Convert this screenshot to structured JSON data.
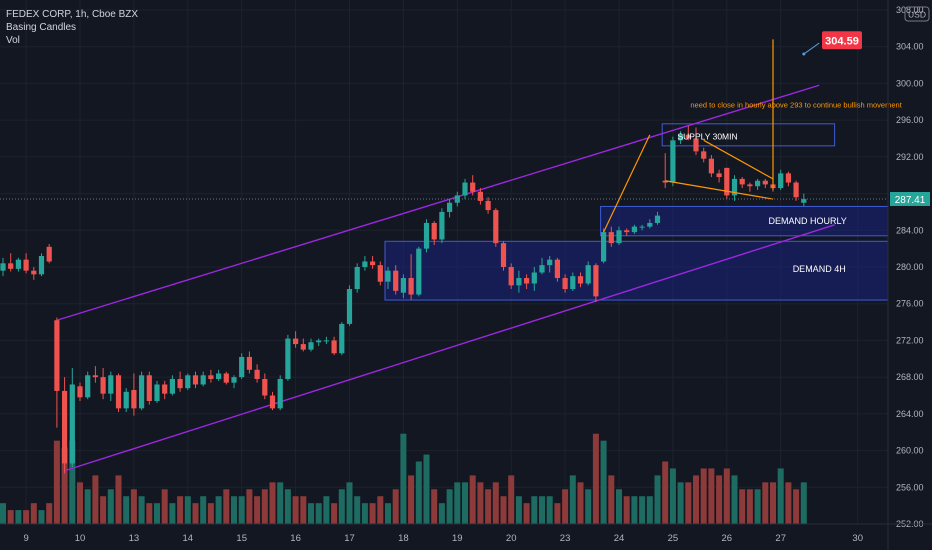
{
  "header": {
    "symbol_line": "FEDEX CORP, 1h, Cboe BZX",
    "indicator_1": "Basing Candles",
    "indicator_2": "Vol"
  },
  "currency": "USD",
  "last_price_label": "287.41",
  "target_label": "304.59",
  "colors": {
    "background": "#131722",
    "up": "#26a69a",
    "down": "#ef5350",
    "channel": "#9c27e0",
    "zone_border": "#3f5bd6",
    "zone_fill": "#1a237e",
    "annotation": "#ff9800",
    "target": "#f23645",
    "axis_text": "#b2b5be"
  },
  "annotations": {
    "supply": "SUPPLY 30MIN",
    "demand_hourly": "DEMAND HOURLY",
    "demand_4h": "DEMAND 4H",
    "note": "need to close in hourly above 293 to continue bullish movement"
  },
  "chart_data": {
    "type": "candlestick",
    "title": "FEDEX CORP, 1h, Cboe BZX",
    "ylim": [
      252,
      308
    ],
    "yticks": [
      252,
      256,
      260,
      264,
      268,
      272,
      276,
      280,
      284,
      288,
      292,
      296,
      300,
      304,
      308
    ],
    "xticks": [
      {
        "label": "9",
        "index": 3
      },
      {
        "label": "10",
        "index": 10
      },
      {
        "label": "13",
        "index": 17
      },
      {
        "label": "14",
        "index": 24
      },
      {
        "label": "15",
        "index": 31
      },
      {
        "label": "16",
        "index": 38
      },
      {
        "label": "17",
        "index": 45
      },
      {
        "label": "18",
        "index": 52
      },
      {
        "label": "19",
        "index": 59
      },
      {
        "label": "20",
        "index": 66
      },
      {
        "label": "23",
        "index": 73
      },
      {
        "label": "24",
        "index": 80
      },
      {
        "label": "25",
        "index": 87
      },
      {
        "label": "26",
        "index": 94
      },
      {
        "label": "27",
        "index": 101
      },
      {
        "label": "30",
        "index": 111
      }
    ],
    "last_price": 287.41,
    "target_price": 304.59,
    "candles": [
      {
        "o": 279.6,
        "h": 281,
        "l": 279,
        "c": 280.4,
        "v": 3
      },
      {
        "o": 280.4,
        "h": 281.5,
        "l": 279.5,
        "c": 279.8,
        "v": 2
      },
      {
        "o": 279.8,
        "h": 281,
        "l": 279.5,
        "c": 280.8,
        "v": 2
      },
      {
        "o": 280.8,
        "h": 281.5,
        "l": 279.3,
        "c": 279.6,
        "v": 2
      },
      {
        "o": 279.6,
        "h": 280,
        "l": 278.6,
        "c": 279.2,
        "v": 3
      },
      {
        "o": 279.2,
        "h": 281.5,
        "l": 279,
        "c": 281.2,
        "v": 2
      },
      {
        "o": 282.2,
        "h": 282.5,
        "l": 280.4,
        "c": 280.6,
        "v": 3
      },
      {
        "o": 274.2,
        "h": 274.5,
        "l": 262.5,
        "c": 266.5,
        "v": 12
      },
      {
        "o": 266.5,
        "h": 268,
        "l": 257.5,
        "c": 258.6,
        "v": 11
      },
      {
        "o": 258.6,
        "h": 269,
        "l": 258.2,
        "c": 267.2,
        "v": 12
      },
      {
        "o": 267,
        "h": 267.4,
        "l": 265.4,
        "c": 265.8,
        "v": 6
      },
      {
        "o": 265.8,
        "h": 268.6,
        "l": 265.6,
        "c": 268.2,
        "v": 5
      },
      {
        "o": 268.2,
        "h": 269.2,
        "l": 267.4,
        "c": 268,
        "v": 7
      },
      {
        "o": 268,
        "h": 269,
        "l": 265.6,
        "c": 266.2,
        "v": 4
      },
      {
        "o": 266.2,
        "h": 268.6,
        "l": 265.4,
        "c": 268.2,
        "v": 5
      },
      {
        "o": 268.2,
        "h": 268.4,
        "l": 264.2,
        "c": 264.6,
        "v": 7
      },
      {
        "o": 264.6,
        "h": 266.8,
        "l": 264.2,
        "c": 266.4,
        "v": 4
      },
      {
        "o": 266.6,
        "h": 268.4,
        "l": 263.8,
        "c": 264.6,
        "v": 5
      },
      {
        "o": 264.6,
        "h": 268.6,
        "l": 264.4,
        "c": 268.2,
        "v": 4
      },
      {
        "o": 268.2,
        "h": 268.6,
        "l": 265,
        "c": 265.4,
        "v": 3
      },
      {
        "o": 265.4,
        "h": 267.6,
        "l": 265.2,
        "c": 267.2,
        "v": 3
      },
      {
        "o": 267.2,
        "h": 267.6,
        "l": 265.6,
        "c": 266.2,
        "v": 5
      },
      {
        "o": 266.2,
        "h": 268.2,
        "l": 266,
        "c": 267.8,
        "v": 3
      },
      {
        "o": 267.8,
        "h": 268.6,
        "l": 266.4,
        "c": 266.8,
        "v": 4
      },
      {
        "o": 266.8,
        "h": 268.4,
        "l": 266.6,
        "c": 268.2,
        "v": 4
      },
      {
        "o": 268.2,
        "h": 268.6,
        "l": 266.8,
        "c": 267.2,
        "v": 3
      },
      {
        "o": 267.2,
        "h": 268.6,
        "l": 267,
        "c": 268.2,
        "v": 4
      },
      {
        "o": 268.2,
        "h": 268.8,
        "l": 267.4,
        "c": 267.8,
        "v": 3
      },
      {
        "o": 267.8,
        "h": 268.8,
        "l": 267.6,
        "c": 268.4,
        "v": 4
      },
      {
        "o": 268.4,
        "h": 268.6,
        "l": 267.2,
        "c": 267.4,
        "v": 5
      },
      {
        "o": 267.4,
        "h": 268.2,
        "l": 266.8,
        "c": 268,
        "v": 4
      },
      {
        "o": 268,
        "h": 270.6,
        "l": 267.8,
        "c": 270.2,
        "v": 4
      },
      {
        "o": 270.2,
        "h": 270.8,
        "l": 268.4,
        "c": 268.8,
        "v": 5
      },
      {
        "o": 268.8,
        "h": 269.4,
        "l": 267.4,
        "c": 267.8,
        "v": 4
      },
      {
        "o": 267.8,
        "h": 268.4,
        "l": 265.6,
        "c": 266,
        "v": 5
      },
      {
        "o": 266,
        "h": 266.4,
        "l": 264.4,
        "c": 264.6,
        "v": 6
      },
      {
        "o": 264.6,
        "h": 268.2,
        "l": 264.4,
        "c": 267.8,
        "v": 6
      },
      {
        "o": 267.8,
        "h": 272.6,
        "l": 267.6,
        "c": 272.2,
        "v": 5
      },
      {
        "o": 272.2,
        "h": 273,
        "l": 271.2,
        "c": 271.6,
        "v": 4
      },
      {
        "o": 271.6,
        "h": 272.2,
        "l": 270.8,
        "c": 271,
        "v": 4
      },
      {
        "o": 271,
        "h": 272.2,
        "l": 270.8,
        "c": 271.8,
        "v": 3
      },
      {
        "o": 271.8,
        "h": 272.2,
        "l": 271.4,
        "c": 272,
        "v": 3
      },
      {
        "o": 272,
        "h": 272.4,
        "l": 271.6,
        "c": 272,
        "v": 4
      },
      {
        "o": 272,
        "h": 272.4,
        "l": 270.4,
        "c": 270.6,
        "v": 3
      },
      {
        "o": 270.6,
        "h": 274,
        "l": 270.4,
        "c": 273.8,
        "v": 5
      },
      {
        "o": 273.8,
        "h": 278,
        "l": 273.6,
        "c": 277.6,
        "v": 6
      },
      {
        "o": 277.6,
        "h": 280.4,
        "l": 277.2,
        "c": 280,
        "v": 4
      },
      {
        "o": 280,
        "h": 281.2,
        "l": 279.6,
        "c": 280.6,
        "v": 3
      },
      {
        "o": 280.6,
        "h": 281.2,
        "l": 279.8,
        "c": 280.2,
        "v": 3
      },
      {
        "o": 280.2,
        "h": 280.6,
        "l": 278,
        "c": 278.4,
        "v": 4
      },
      {
        "o": 278.4,
        "h": 280,
        "l": 277.6,
        "c": 279.6,
        "v": 3
      },
      {
        "o": 279.6,
        "h": 280.2,
        "l": 277,
        "c": 277.4,
        "v": 5
      },
      {
        "o": 277.2,
        "h": 279.2,
        "l": 276.6,
        "c": 278.8,
        "v": 13
      },
      {
        "o": 278.8,
        "h": 281.4,
        "l": 276.4,
        "c": 277,
        "v": 7
      },
      {
        "o": 277,
        "h": 282.2,
        "l": 276.8,
        "c": 282,
        "v": 9
      },
      {
        "o": 282,
        "h": 285.2,
        "l": 281.6,
        "c": 284.8,
        "v": 10
      },
      {
        "o": 284.8,
        "h": 285,
        "l": 282.4,
        "c": 283,
        "v": 5
      },
      {
        "o": 283,
        "h": 286.4,
        "l": 282.6,
        "c": 286,
        "v": 3
      },
      {
        "o": 286,
        "h": 287.4,
        "l": 285.4,
        "c": 287,
        "v": 5
      },
      {
        "o": 287,
        "h": 288.2,
        "l": 286.6,
        "c": 287.8,
        "v": 6
      },
      {
        "o": 287.8,
        "h": 289.6,
        "l": 287.4,
        "c": 289.2,
        "v": 6
      },
      {
        "o": 289.2,
        "h": 290,
        "l": 287.8,
        "c": 288.2,
        "v": 7
      },
      {
        "o": 288.2,
        "h": 288.6,
        "l": 286.8,
        "c": 287.2,
        "v": 6
      },
      {
        "o": 287.2,
        "h": 287.6,
        "l": 285.8,
        "c": 286.2,
        "v": 5
      },
      {
        "o": 286.2,
        "h": 286.4,
        "l": 282.2,
        "c": 282.6,
        "v": 6
      },
      {
        "o": 282.6,
        "h": 282.8,
        "l": 279.6,
        "c": 280,
        "v": 4
      },
      {
        "o": 280,
        "h": 280.4,
        "l": 277.6,
        "c": 278,
        "v": 7
      },
      {
        "o": 278,
        "h": 279.6,
        "l": 277.2,
        "c": 278.8,
        "v": 4
      },
      {
        "o": 278.8,
        "h": 279.2,
        "l": 277.6,
        "c": 278.2,
        "v": 3
      },
      {
        "o": 278.2,
        "h": 280,
        "l": 277.4,
        "c": 279.4,
        "v": 4
      },
      {
        "o": 279.4,
        "h": 281,
        "l": 279.2,
        "c": 280.2,
        "v": 4
      },
      {
        "o": 280.2,
        "h": 281.2,
        "l": 279.4,
        "c": 280.8,
        "v": 4
      },
      {
        "o": 280.8,
        "h": 281,
        "l": 278.4,
        "c": 278.8,
        "v": 3
      },
      {
        "o": 278.8,
        "h": 279.2,
        "l": 277.2,
        "c": 277.6,
        "v": 5
      },
      {
        "o": 277.6,
        "h": 279.4,
        "l": 277.4,
        "c": 279,
        "v": 7
      },
      {
        "o": 279,
        "h": 279.4,
        "l": 277.8,
        "c": 278.2,
        "v": 6
      },
      {
        "o": 278.2,
        "h": 280.6,
        "l": 278,
        "c": 280.2,
        "v": 5
      },
      {
        "o": 280.2,
        "h": 280.4,
        "l": 276.2,
        "c": 276.8,
        "v": 13
      },
      {
        "o": 280.6,
        "h": 284.2,
        "l": 280.4,
        "c": 283.8,
        "v": 12
      },
      {
        "o": 283.8,
        "h": 284.4,
        "l": 282.2,
        "c": 282.6,
        "v": 7
      },
      {
        "o": 282.6,
        "h": 284.4,
        "l": 282.4,
        "c": 284,
        "v": 5
      },
      {
        "o": 284,
        "h": 284.2,
        "l": 283.4,
        "c": 283.8,
        "v": 4
      },
      {
        "o": 283.8,
        "h": 284.6,
        "l": 283.6,
        "c": 284.4,
        "v": 4
      },
      {
        "o": 284.4,
        "h": 284.6,
        "l": 284,
        "c": 284.4,
        "v": 4
      },
      {
        "o": 284.4,
        "h": 285.2,
        "l": 284.2,
        "c": 284.8,
        "v": 4
      },
      {
        "o": 284.8,
        "h": 286,
        "l": 284.6,
        "c": 285.6,
        "v": 7
      },
      {
        "o": 289.4,
        "h": 292.4,
        "l": 288.6,
        "c": 289.2,
        "v": 9
      },
      {
        "o": 289.2,
        "h": 294.2,
        "l": 288.8,
        "c": 293.8,
        "v": 8
      },
      {
        "o": 293.8,
        "h": 294.8,
        "l": 293.4,
        "c": 294.4,
        "v": 6
      },
      {
        "o": 294.4,
        "h": 295.4,
        "l": 293.8,
        "c": 294,
        "v": 6
      },
      {
        "o": 294,
        "h": 295.2,
        "l": 292.2,
        "c": 292.6,
        "v": 7
      },
      {
        "o": 292.6,
        "h": 293,
        "l": 291.4,
        "c": 291.8,
        "v": 8
      },
      {
        "o": 291.8,
        "h": 292.2,
        "l": 289.8,
        "c": 290.2,
        "v": 8
      },
      {
        "o": 290.2,
        "h": 290.6,
        "l": 289.2,
        "c": 289.8,
        "v": 7
      },
      {
        "o": 290.8,
        "h": 290.8,
        "l": 287.4,
        "c": 287.8,
        "v": 8
      },
      {
        "o": 287.8,
        "h": 290,
        "l": 287.2,
        "c": 289.6,
        "v": 7
      },
      {
        "o": 289.6,
        "h": 289.8,
        "l": 288.6,
        "c": 289,
        "v": 5
      },
      {
        "o": 289,
        "h": 289.2,
        "l": 288.2,
        "c": 288.8,
        "v": 5
      },
      {
        "o": 288.8,
        "h": 289.6,
        "l": 288.4,
        "c": 289.4,
        "v": 5
      },
      {
        "o": 289.4,
        "h": 289.6,
        "l": 288.6,
        "c": 289,
        "v": 6
      },
      {
        "o": 289,
        "h": 290.4,
        "l": 288.2,
        "c": 288.6,
        "v": 6
      },
      {
        "o": 288.6,
        "h": 290.6,
        "l": 288.4,
        "c": 290.2,
        "v": 8
      },
      {
        "o": 290.2,
        "h": 290.4,
        "l": 288.8,
        "c": 289.2,
        "v": 6
      },
      {
        "o": 289.2,
        "h": 289.4,
        "l": 287.2,
        "c": 287.6,
        "v": 5
      },
      {
        "o": 287,
        "h": 288,
        "l": 286.6,
        "c": 287.4,
        "v": 6
      }
    ],
    "volume_ymax": 18,
    "channel": {
      "upper": [
        {
          "i": 7,
          "p": 274.2
        },
        {
          "i": 106,
          "p": 299.8
        }
      ],
      "lower": [
        {
          "i": 8,
          "p": 257.8
        },
        {
          "i": 108,
          "p": 284.6
        }
      ]
    },
    "zones": [
      {
        "name": "supply",
        "i0": 86,
        "i1": 108,
        "p_low": 293.2,
        "p_high": 295.6
      },
      {
        "name": "demand_hourly",
        "i0": 78,
        "i1": 115,
        "p_low": 283.4,
        "p_high": 286.6
      },
      {
        "name": "demand_4h",
        "i0": 50,
        "i1": 115,
        "p_low": 276.4,
        "p_high": 282.8
      }
    ],
    "drawn_lines": [
      [
        {
          "i": 78,
          "p": 283.8
        },
        {
          "i": 84,
          "p": 294.4
        }
      ],
      [
        {
          "i": 86,
          "p": 289.4
        },
        {
          "i": 100,
          "p": 287.4
        }
      ],
      [
        {
          "i": 91,
          "p": 293.8
        },
        {
          "i": 100,
          "p": 289.6
        }
      ],
      [
        {
          "i": 100,
          "p": 288.4
        },
        {
          "i": 100,
          "p": 304.8
        }
      ]
    ],
    "target_arrow": [
      {
        "i": 106,
        "p": 304.4
      },
      {
        "i": 104,
        "p": 303.2
      }
    ]
  }
}
